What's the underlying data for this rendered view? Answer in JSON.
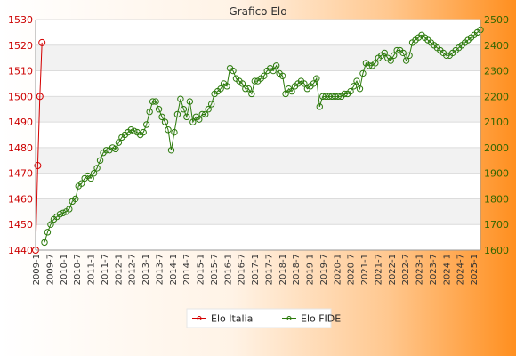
{
  "chart_data": {
    "type": "line",
    "title": "Grafico Elo",
    "left_axis": {
      "min": 1440,
      "max": 1530,
      "ticks": [
        1440,
        1450,
        1460,
        1470,
        1480,
        1490,
        1500,
        1510,
        1520,
        1530
      ],
      "color": "#cc0000"
    },
    "right_axis": {
      "min": 1600,
      "max": 2500,
      "ticks": [
        1600,
        1700,
        1800,
        1900,
        2000,
        2100,
        2200,
        2300,
        2400,
        2500
      ],
      "color": "#336600"
    },
    "x_tick_labels": [
      "2009-1",
      "2009-7",
      "2010-1",
      "2010-7",
      "2011-1",
      "2011-7",
      "2012-1",
      "2012-7",
      "2013-1",
      "2013-7",
      "2014-1",
      "2014-7",
      "2015-1",
      "2015-7",
      "2016-1",
      "2016-7",
      "2017-1",
      "2017-7",
      "2018-1",
      "2018-7",
      "2019-1",
      "2019-7",
      "2020-1",
      "2020-7",
      "2021-1",
      "2021-7",
      "2022-1",
      "2022-7",
      "2023-1",
      "2023-7",
      "2024-1",
      "2024-7",
      "2025-1"
    ],
    "grid": true,
    "legend_position": "bottom-center",
    "series": [
      {
        "name": "Elo Italia",
        "axis": "left",
        "color": "#d40000",
        "values": [
          1440,
          1473,
          1500,
          1521
        ]
      },
      {
        "name": "Elo FIDE",
        "axis": "right",
        "color": "#2b7a0b",
        "values": [
          1630,
          1670,
          1700,
          1720,
          1730,
          1740,
          1745,
          1750,
          1760,
          1790,
          1800,
          1850,
          1860,
          1880,
          1890,
          1880,
          1900,
          1920,
          1950,
          1980,
          1990,
          1990,
          2000,
          1995,
          2020,
          2040,
          2050,
          2060,
          2070,
          2065,
          2060,
          2050,
          2060,
          2090,
          2140,
          2180,
          2180,
          2150,
          2120,
          2100,
          2070,
          1990,
          2060,
          2130,
          2190,
          2150,
          2120,
          2180,
          2100,
          2120,
          2110,
          2130,
          2130,
          2150,
          2170,
          2210,
          2220,
          2230,
          2250,
          2240,
          2310,
          2300,
          2270,
          2260,
          2250,
          2230,
          2230,
          2210,
          2260,
          2260,
          2270,
          2280,
          2300,
          2310,
          2300,
          2320,
          2290,
          2280,
          2210,
          2230,
          2220,
          2240,
          2250,
          2260,
          2250,
          2230,
          2240,
          2250,
          2270,
          2160,
          2200,
          2200,
          2200,
          2200,
          2200,
          2200,
          2200,
          2210,
          2210,
          2220,
          2240,
          2260,
          2230,
          2290,
          2330,
          2320,
          2320,
          2330,
          2350,
          2360,
          2370,
          2350,
          2340,
          2360,
          2380,
          2380,
          2370,
          2340,
          2360,
          2410,
          2420,
          2430,
          2440,
          2430,
          2420,
          2410,
          2400,
          2390,
          2380,
          2370,
          2360,
          2360,
          2370,
          2380,
          2390,
          2400,
          2410,
          2420,
          2430,
          2440,
          2450,
          2460
        ]
      }
    ]
  }
}
